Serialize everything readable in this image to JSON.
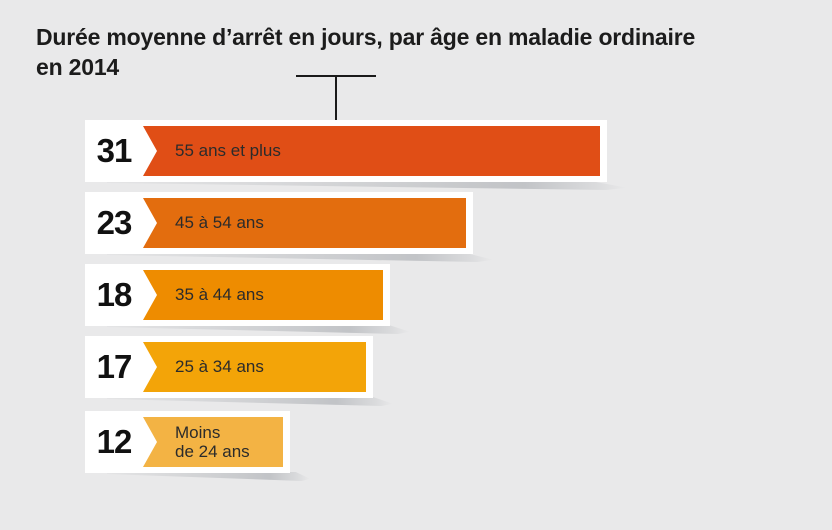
{
  "title": {
    "line1": "Durée moyenne d’arrêt en jours, par âge en maladie ordinaire",
    "line2": "en 2014"
  },
  "chart_data": {
    "type": "bar",
    "orientation": "horizontal",
    "title": "Durée moyenne d’arrêt en jours, par âge en maladie ordinaire en 2014",
    "unit": "jours",
    "categories": [
      "55 ans et plus",
      "45 à 54 ans",
      "35 à 44 ans",
      "25 à 34 ans",
      "Moins\nde 24 ans"
    ],
    "values": [
      31,
      23,
      18,
      17,
      12
    ],
    "bar_colors": [
      "#e04e16",
      "#e36d0e",
      "#ee8c00",
      "#f3a408",
      "#f3b344"
    ],
    "value_label_color": "#111111",
    "category_label_color": "#2b2b2b",
    "background": "#e9e9ea",
    "grid": false,
    "legend": false
  }
}
